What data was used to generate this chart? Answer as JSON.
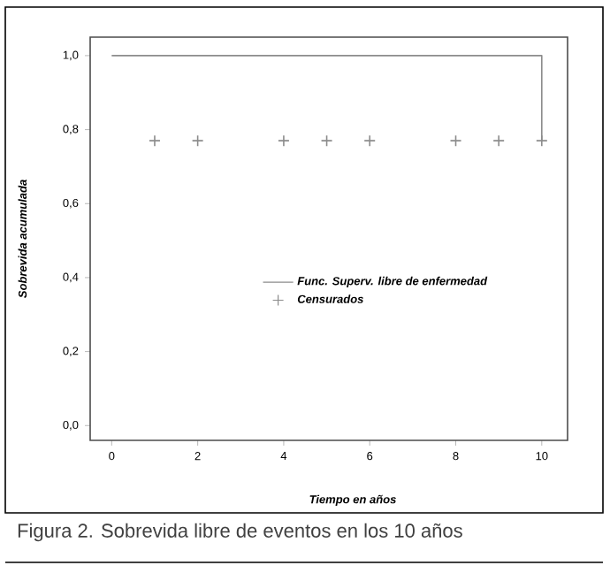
{
  "chart_data": {
    "type": "step",
    "xlabel": "Tiempo en años",
    "ylabel": "Sobrevida acumulada",
    "xlim": [
      -0.5,
      10.6
    ],
    "ylim": [
      -0.04,
      1.05
    ],
    "xticks": [
      0,
      2,
      4,
      6,
      8,
      10
    ],
    "yticks": [
      {
        "value": 0,
        "label": "0,0"
      },
      {
        "value": 0.2,
        "label": "0,2"
      },
      {
        "value": 0.4,
        "label": "0,4"
      },
      {
        "value": 0.6,
        "label": "0,6"
      },
      {
        "value": 0.8,
        "label": "0,8"
      },
      {
        "value": 1.0,
        "label": "1,0"
      }
    ],
    "legend": "center",
    "grid": false,
    "annotations": [
      "Figura 2.  Sobrevida libre de eventos en los 10 años"
    ],
    "series": [
      {
        "name": "Func. Superv. libre de enfermedad",
        "color": "#8c8c8c",
        "x": [
          0,
          10
        ],
        "values": [
          1.0,
          0.77
        ],
        "marker": "none"
      },
      {
        "name": "Censurados",
        "type": "scatter",
        "color": "#8c8c8c",
        "x": [
          1,
          2,
          4,
          5,
          6,
          8,
          9,
          10
        ],
        "values": [
          0.77,
          0.77,
          0.77,
          0.77,
          0.77,
          0.77,
          0.77,
          0.77
        ],
        "marker": "cross"
      }
    ]
  }
}
